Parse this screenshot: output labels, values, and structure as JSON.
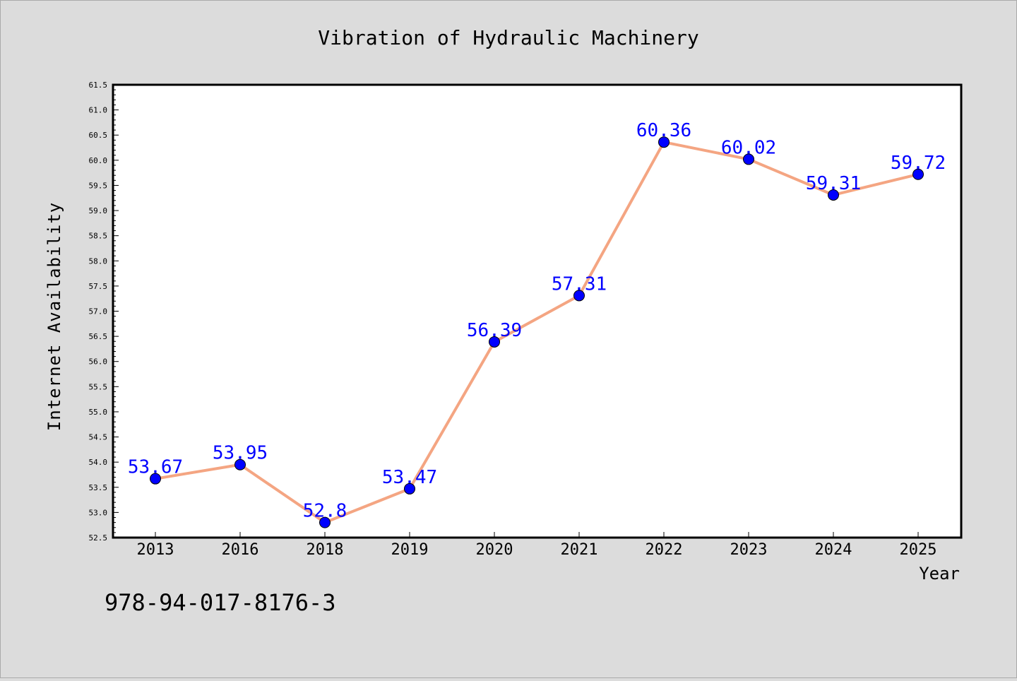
{
  "chart_data": {
    "type": "line",
    "title": "Vibration of Hydraulic Machinery",
    "xlabel": "Year",
    "ylabel": "Internet Availability",
    "categories": [
      "2013",
      "2016",
      "2018",
      "2019",
      "2020",
      "2021",
      "2022",
      "2023",
      "2024",
      "2025"
    ],
    "series": [
      {
        "values": [
          53.67,
          53.95,
          52.8,
          53.47,
          56.39,
          57.31,
          60.36,
          60.02,
          59.31,
          59.72
        ],
        "labels": [
          "53.67",
          "53.95",
          "52.8",
          "53.47",
          "56.39",
          "57.31",
          "60.36",
          "60.02",
          "59.31",
          "59.72"
        ],
        "line_color": "#f4a582",
        "marker_color": "#0000ff",
        "label_color": "#0000ff"
      }
    ],
    "ylim": [
      52.5,
      61.5
    ],
    "yticks": [
      "52.5",
      "53.0",
      "53.5",
      "54.0",
      "54.5",
      "55.0",
      "55.5",
      "56.0",
      "56.5",
      "57.0",
      "57.5",
      "58.0",
      "58.5",
      "59.0",
      "59.5",
      "60.0",
      "60.5",
      "61.0",
      "61.5"
    ],
    "grid": false,
    "legend": "none"
  },
  "footer": {
    "isbn": "978-94-017-8176-3"
  },
  "colors": {
    "background": "#dcdcdc",
    "plot_background": "#ffffff",
    "axis": "#000000",
    "text": "#000000"
  }
}
